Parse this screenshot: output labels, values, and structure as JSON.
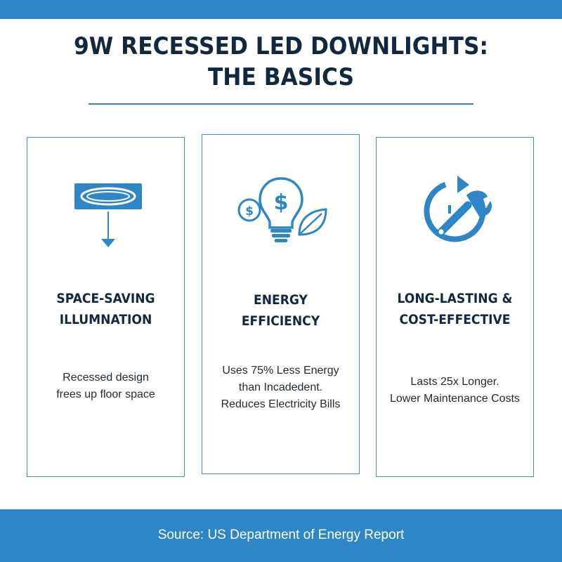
{
  "title": {
    "line1": "9W RECESSED LED DOWNLIGHTS:",
    "line2": "THE BASICS"
  },
  "colors": {
    "accent": "#2f86c6",
    "heading": "#13283f",
    "text": "#222b36",
    "background": "#ffffff"
  },
  "cards": [
    {
      "icon": "recessed-light-icon",
      "heading_line1": "SPACE-SAVING",
      "heading_line2": "ILLUMNATION",
      "body_line1": "Recessed design",
      "body_line2": "frees up floor space"
    },
    {
      "icon": "energy-bulb-icon",
      "heading_line1": "ENERGY",
      "heading_line2": "EFFICIENCY",
      "body_line1": "Uses 75% Less Energy",
      "body_line2": "than Incadedent.",
      "body_line3": "Reduces Electricity Bills"
    },
    {
      "icon": "wrench-cycle-icon",
      "heading_line1": "LONG-LASTING &",
      "heading_line2": "COST-EFFECTIVE",
      "body_line1": "Lasts 25x Longer.",
      "body_line2": "Lower Maintenance Costs"
    }
  ],
  "footer": {
    "source": "Source: US Department of Energy Report"
  }
}
